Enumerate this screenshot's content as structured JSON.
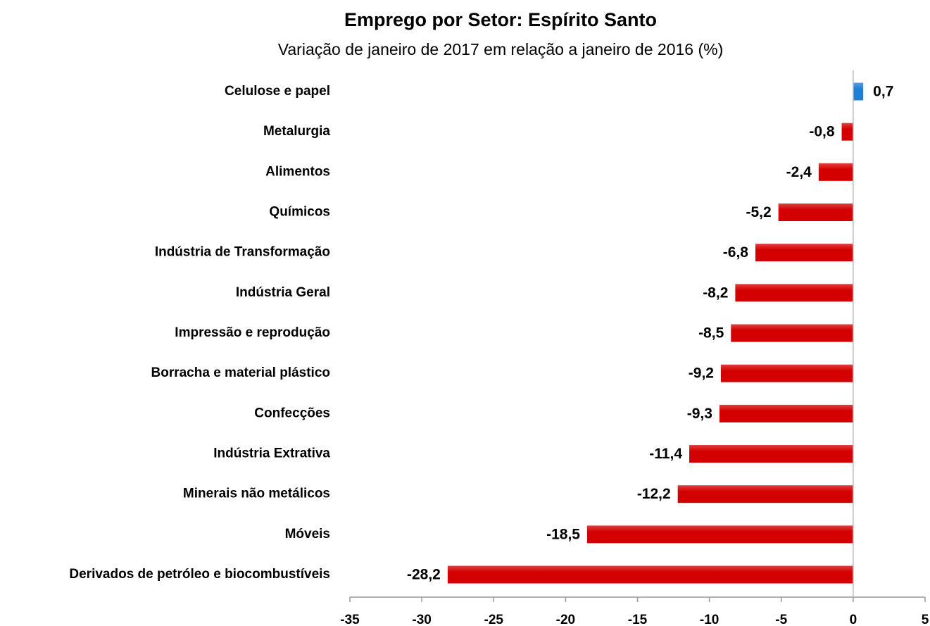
{
  "chart_data": {
    "type": "barh",
    "title": "Emprego por Setor: Espírito Santo",
    "subtitle": "Variação de janeiro de 2017 em relação a janeiro de 2016 (%)",
    "categories": [
      "Celulose e papel",
      "Metalurgia",
      "Alimentos",
      "Químicos",
      "Indústria de Transformação",
      "Indústria Geral",
      "Impressão e reprodução",
      "Borracha e material plástico",
      "Confecções",
      "Indústria Extrativa",
      "Minerais não metálicos",
      "Móveis",
      "Derivados de petróleo e biocombustíveis"
    ],
    "values": [
      0.7,
      -0.8,
      -2.4,
      -5.2,
      -6.8,
      -8.2,
      -8.5,
      -9.2,
      -9.3,
      -11.4,
      -12.2,
      -18.5,
      -28.2
    ],
    "value_labels": [
      "0,7",
      "-0,8",
      "-2,4",
      "-5,2",
      "-6,8",
      "-8,2",
      "-8,5",
      "-9,2",
      "-9,3",
      "-11,4",
      "-12,2",
      "-18,5",
      "-28,2"
    ],
    "positive_color": "#1f7fd6",
    "negative_color": "#d40000",
    "xlim": [
      -35,
      5
    ],
    "xticks": [
      -35,
      -30,
      -25,
      -20,
      -15,
      -10,
      -5,
      0,
      5
    ]
  }
}
